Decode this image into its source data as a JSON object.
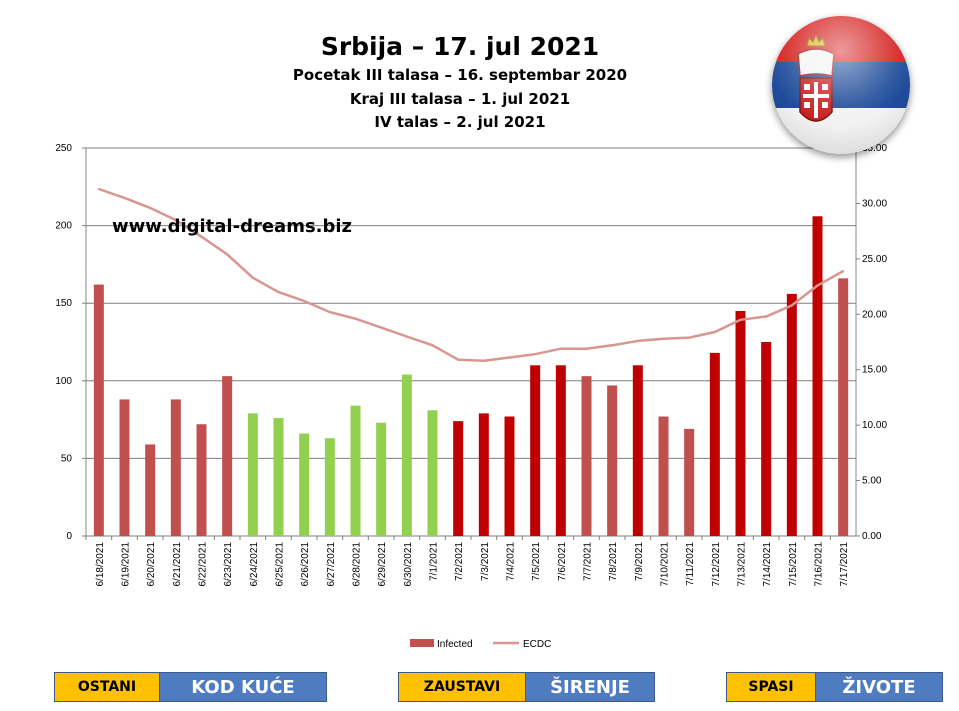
{
  "titles": {
    "main": "Srbija – 17. jul 2021",
    "line2": "Pocetak III talasa  – 16. septembar 2020",
    "line3": "Kraj III talasa  – 1. jul 2021",
    "line4": "IV talas  – 2. jul 2021"
  },
  "watermark": "www.digital-dreams.biz",
  "buttons": [
    {
      "left": "OSTANI",
      "right": "KOD KUĆE"
    },
    {
      "left": "ZAUSTAVI",
      "right": "ŠIRENJE"
    },
    {
      "left": "SPASI",
      "right": "ŽIVOTE"
    }
  ],
  "colors": {
    "dark_red": "#c00000",
    "muted_red": "#c0504d",
    "green": "#92d050",
    "line": "#d9958f",
    "button_yellow": "#ffc000",
    "button_blue": "#4f7bc0"
  },
  "chart_data": {
    "type": "bar",
    "categories": [
      "6/18/2021",
      "6/19/2021",
      "6/20/2021",
      "6/21/2021",
      "6/22/2021",
      "6/23/2021",
      "6/24/2021",
      "6/25/2021",
      "6/26/2021",
      "6/27/2021",
      "6/28/2021",
      "6/29/2021",
      "6/30/2021",
      "7/1/2021",
      "7/2/2021",
      "7/3/2021",
      "7/4/2021",
      "7/5/2021",
      "7/6/2021",
      "7/7/2021",
      "7/8/2021",
      "7/9/2021",
      "7/10/2021",
      "7/11/2021",
      "7/12/2021",
      "7/13/2021",
      "7/14/2021",
      "7/15/2021",
      "7/16/2021",
      "7/17/2021"
    ],
    "series": [
      {
        "name": "Infected",
        "type": "bar",
        "axis": "left",
        "values": [
          162,
          88,
          59,
          88,
          72,
          103,
          79,
          76,
          66,
          63,
          84,
          73,
          104,
          81,
          74,
          79,
          77,
          110,
          110,
          103,
          97,
          110,
          77,
          69,
          118,
          145,
          125,
          156,
          206,
          166
        ],
        "bar_colors": [
          "muted_red",
          "muted_red",
          "muted_red",
          "muted_red",
          "muted_red",
          "muted_red",
          "green",
          "green",
          "green",
          "green",
          "green",
          "green",
          "green",
          "green",
          "dark_red",
          "dark_red",
          "dark_red",
          "dark_red",
          "dark_red",
          "muted_red",
          "muted_red",
          "dark_red",
          "muted_red",
          "muted_red",
          "dark_red",
          "dark_red",
          "dark_red",
          "dark_red",
          "dark_red",
          "muted_red"
        ]
      },
      {
        "name": "ECDC",
        "type": "line",
        "axis": "right",
        "values": [
          31.3,
          30.5,
          29.6,
          28.5,
          27.0,
          25.4,
          23.3,
          22.0,
          21.2,
          20.2,
          19.6,
          18.8,
          18.0,
          17.2,
          15.9,
          15.8,
          16.1,
          16.4,
          16.9,
          16.9,
          17.2,
          17.6,
          17.8,
          17.9,
          18.4,
          19.5,
          19.8,
          20.8,
          22.6,
          23.9
        ]
      }
    ],
    "y_left": {
      "min": 0,
      "max": 250,
      "ticks": [
        "0",
        "50",
        "100",
        "150",
        "200",
        "250"
      ]
    },
    "y_right": {
      "min": 0,
      "max": 35,
      "ticks": [
        "0.00",
        "5.00",
        "10.00",
        "15.00",
        "20.00",
        "25.00",
        "30.00",
        "35.00"
      ]
    },
    "grid": true,
    "legend": {
      "position": "bottom",
      "items": [
        "Infected",
        "ECDC"
      ]
    }
  }
}
